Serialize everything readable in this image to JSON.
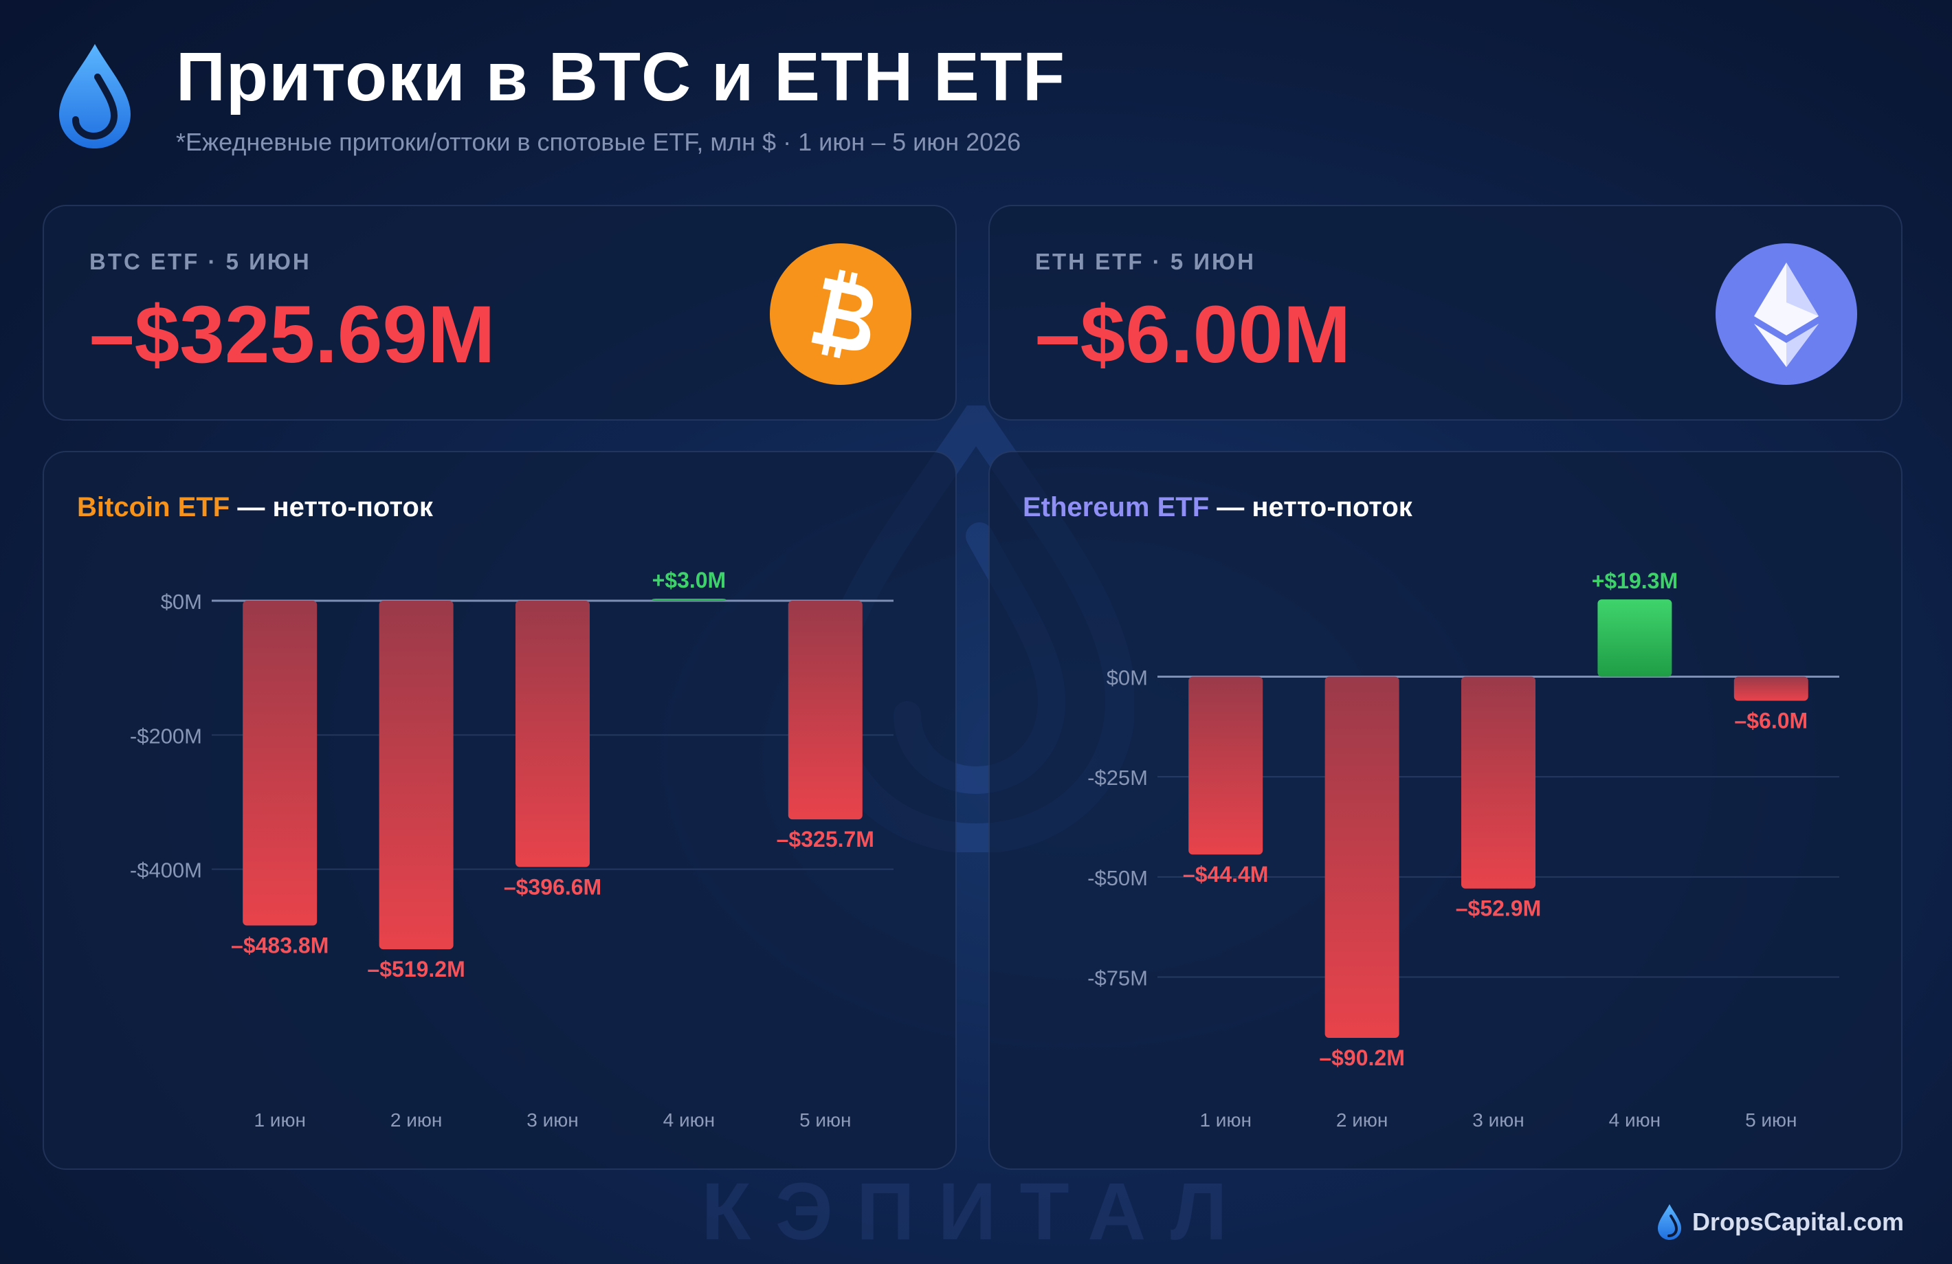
{
  "header": {
    "title": "Притоки в BTC и ETH ETF",
    "subtitle": "*Ежедневные притоки/оттоки в спотовые ETF, млн $ · 1 июн – 5 июн 2026",
    "logo_icon": "drop-logo-icon"
  },
  "stats": {
    "btc": {
      "label": "BTC ETF · 5 ИЮН",
      "value": "–$325.69M",
      "icon": "bitcoin-icon",
      "color": "#f7931a"
    },
    "eth": {
      "label": "ETH ETF · 5 ИЮН",
      "value": "–$6.00M",
      "icon": "ethereum-icon",
      "color": "#6b7ff0"
    }
  },
  "colors": {
    "negative": "#e8434b",
    "positive": "#2fbf5a",
    "negative_label": "#f5525a",
    "positive_label": "#3ed36a",
    "btc_accent": "#f7931a",
    "eth_accent": "#8f8ff5"
  },
  "chart_data": [
    {
      "type": "bar",
      "title_accent": "Bitcoin ETF",
      "title_rest": " — нетто-поток",
      "categories": [
        "1 июн",
        "2 июн",
        "3 июн",
        "4 июн",
        "5 июн"
      ],
      "values": [
        -483.8,
        -519.2,
        -396.6,
        3.0,
        -325.7
      ],
      "value_labels": [
        "–$483.8M",
        "–$519.2M",
        "–$396.6M",
        "+$3.0M",
        "–$325.7M"
      ],
      "yticks": [
        0,
        -200,
        -400
      ],
      "ytick_labels": [
        "$0M",
        "-$200M",
        "-$400M"
      ],
      "ylim": [
        -540,
        0
      ],
      "grid": true
    },
    {
      "type": "bar",
      "title_accent": "Ethereum ETF",
      "title_rest": " — нетто-поток",
      "categories": [
        "1 июн",
        "2 июн",
        "3 июн",
        "4 июн",
        "5 июн"
      ],
      "values": [
        -44.4,
        -90.2,
        -52.9,
        19.3,
        -6.0
      ],
      "value_labels": [
        "–$44.4M",
        "–$90.2M",
        "–$52.9M",
        "+$19.3M",
        "–$6.0M"
      ],
      "yticks": [
        0,
        -25,
        -50,
        -75
      ],
      "ytick_labels": [
        "$0M",
        "-$25M",
        "-$50M",
        "-$75M"
      ],
      "ylim": [
        -95,
        20
      ],
      "grid": true
    }
  ],
  "watermark": {
    "text": "КЭПИТАЛ",
    "icon": "drop-watermark-icon"
  },
  "footer": {
    "brand": "DropsCapital.com",
    "icon": "drop-small-icon"
  }
}
